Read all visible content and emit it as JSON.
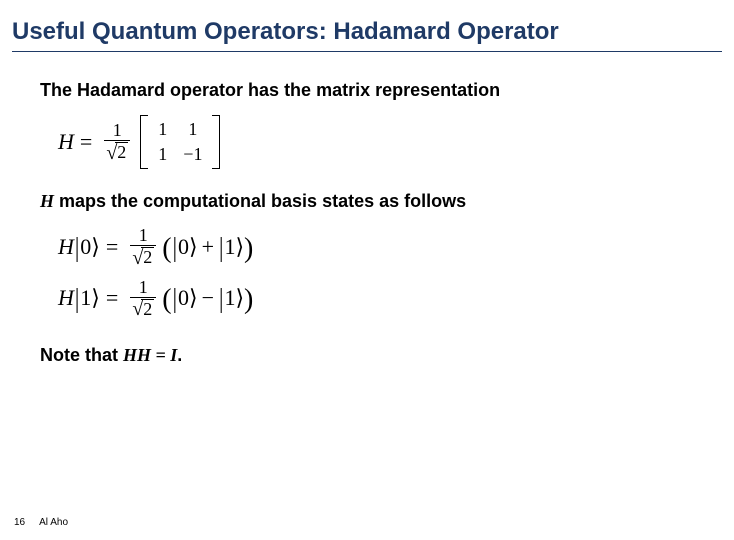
{
  "title": "Useful Quantum Operators: Hadamard Operator",
  "intro": "The Hadamard operator has the matrix representation",
  "eq1": {
    "lhs_sym": "H",
    "equals": "=",
    "frac_num": "1",
    "sqrt_arg": "2",
    "m11": "1",
    "m12": "1",
    "m21": "1",
    "m22": "−1"
  },
  "maps_prefix": "H",
  "maps_rest": " maps the computational basis states as follows",
  "eq2a": {
    "lhs_H": "H",
    "lhs_ket": "0",
    "eq": "=",
    "frac_num": "1",
    "sqrt_arg": "2",
    "k1": "0",
    "op": "+",
    "k2": "1"
  },
  "eq2b": {
    "lhs_H": "H",
    "lhs_ket": "1",
    "eq": "=",
    "frac_num": "1",
    "sqrt_arg": "2",
    "k1": "0",
    "op": "−",
    "k2": "1"
  },
  "note_pre": "Note that ",
  "note_HH": "HH",
  "note_mid": " = ",
  "note_I": "I",
  "note_end": ".",
  "footer_num": "16",
  "footer_author": "Al Aho"
}
